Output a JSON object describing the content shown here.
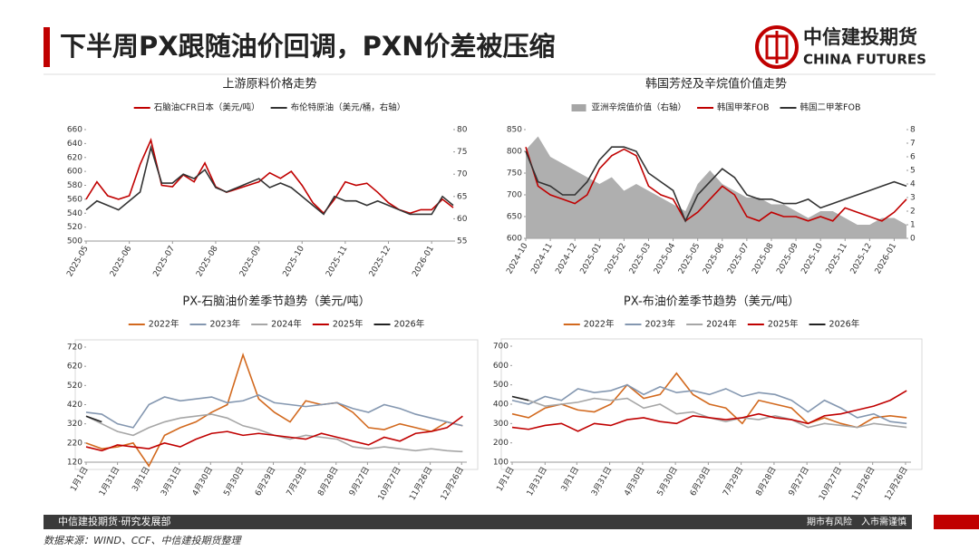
{
  "header": {
    "title": "下半周PX跟随油价回调，PXN价差被压缩",
    "logo_cn": "中信建投期货",
    "logo_en": "CHINA FUTURES"
  },
  "footer": {
    "department": "中信建投期货·研究发展部",
    "risk": "期市有风险　入市需谨慎",
    "source": "数据来源：WIND、CCF、中信建投期货整理"
  },
  "chart_data": [
    {
      "type": "line",
      "title": "上游原料价格走势",
      "categories": [
        "2025-05",
        null,
        null,
        null,
        "2025-06",
        null,
        null,
        null,
        "2025-07",
        null,
        null,
        null,
        "2025-08",
        null,
        null,
        null,
        "2025-09",
        null,
        null,
        null,
        "2025-10",
        null,
        null,
        null,
        "2025-11",
        null,
        null,
        null,
        "2025-12",
        null,
        null,
        null,
        "2026-01",
        null,
        null
      ],
      "series": [
        {
          "name": "石脑油CFR日本（美元/吨）",
          "color": "#c00000",
          "values": [
            560,
            585,
            565,
            560,
            565,
            610,
            645,
            580,
            578,
            595,
            585,
            612,
            578,
            570,
            575,
            580,
            585,
            598,
            590,
            600,
            580,
            555,
            540,
            560,
            585,
            580,
            583,
            570,
            555,
            545,
            540,
            545,
            545,
            560,
            548
          ]
        },
        {
          "name": "布伦特原油（美元/桶，右轴）",
          "color": "#333333",
          "axis": "y2",
          "values": [
            62,
            64,
            63,
            62,
            64,
            66,
            76,
            68,
            68,
            70,
            69,
            71,
            67,
            66,
            67,
            68,
            69,
            67,
            68,
            67,
            65,
            63,
            61,
            65,
            64,
            64,
            63,
            64,
            63,
            62,
            61,
            61,
            61,
            65,
            63
          ]
        }
      ],
      "ylim": [
        500,
        660
      ],
      "yticks": [
        500,
        520,
        540,
        560,
        580,
        600,
        620,
        640,
        660
      ],
      "y2lim": [
        55,
        80
      ],
      "y2ticks": [
        55,
        60,
        65,
        70,
        75,
        80
      ]
    },
    {
      "type": "line",
      "title": "韩国芳烃及辛烷值价值走势",
      "categories": [
        "2024-10",
        null,
        "2024-11",
        null,
        "2024-12",
        null,
        "2025-01",
        null,
        "2025-02",
        null,
        "2025-03",
        null,
        "2025-04",
        null,
        "2025-05",
        null,
        "2025-06",
        null,
        "2025-07",
        null,
        "2025-08",
        null,
        "2025-09",
        null,
        "2025-10",
        null,
        "2025-11",
        null,
        "2025-12",
        null,
        "2026-01",
        null
      ],
      "series": [
        {
          "name": "亚洲辛烷值价值（右轴）",
          "color": "#a6a6a6",
          "type": "area",
          "axis": "y2",
          "values": [
            6.5,
            7.5,
            6,
            5.5,
            5,
            4.5,
            4,
            4.5,
            3.5,
            4,
            3.5,
            3,
            2.5,
            2,
            4,
            5,
            4,
            3.5,
            3,
            3,
            2.5,
            2.5,
            2,
            1.5,
            2,
            2,
            1.5,
            1,
            1,
            1.5,
            1.5,
            1
          ]
        },
        {
          "name": "韩国甲苯FOB",
          "color": "#c00000",
          "values": [
            810,
            720,
            700,
            690,
            680,
            700,
            760,
            790,
            805,
            790,
            720,
            700,
            690,
            640,
            660,
            690,
            720,
            700,
            650,
            640,
            660,
            650,
            650,
            640,
            650,
            640,
            670,
            660,
            650,
            640,
            660,
            690
          ]
        },
        {
          "name": "韩国二甲苯FOB",
          "color": "#333333",
          "values": [
            800,
            730,
            720,
            700,
            700,
            730,
            780,
            810,
            810,
            800,
            750,
            730,
            710,
            640,
            700,
            730,
            760,
            740,
            700,
            690,
            690,
            680,
            680,
            690,
            670,
            680,
            690,
            700,
            710,
            720,
            730,
            720
          ]
        }
      ],
      "ylim": [
        600,
        850
      ],
      "yticks": [
        600,
        650,
        700,
        750,
        800,
        850
      ],
      "y2lim": [
        0,
        8
      ],
      "y2ticks": [
        0,
        1,
        2,
        3,
        4,
        5,
        6,
        7,
        8
      ]
    },
    {
      "type": "line",
      "title": "PX-石脑油价差季节趋势（美元/吨）",
      "x": [
        1,
        16,
        31,
        46,
        61,
        76,
        91,
        106,
        121,
        136,
        151,
        166,
        181,
        196,
        211,
        226,
        241,
        256,
        271,
        286,
        301,
        316,
        331,
        346,
        361
      ],
      "series": [
        {
          "name": "2022年",
          "color": "#d2691e",
          "values": [
            220,
            190,
            200,
            220,
            100,
            260,
            300,
            330,
            380,
            420,
            680,
            450,
            380,
            330,
            440,
            420,
            430,
            380,
            300,
            290,
            320,
            300,
            280,
            330,
            310
          ]
        },
        {
          "name": "2023年",
          "color": "#8497b0",
          "values": [
            380,
            370,
            320,
            300,
            420,
            460,
            440,
            450,
            460,
            430,
            440,
            470,
            430,
            420,
            410,
            420,
            430,
            400,
            380,
            420,
            400,
            370,
            350,
            330,
            310
          ]
        },
        {
          "name": "2024年",
          "color": "#a6a6a6",
          "values": [
            360,
            320,
            280,
            260,
            300,
            330,
            350,
            360,
            370,
            350,
            310,
            290,
            260,
            240,
            260,
            250,
            240,
            200,
            190,
            200,
            190,
            180,
            190,
            180,
            175
          ]
        },
        {
          "name": "2025年",
          "color": "#c00000",
          "values": [
            200,
            180,
            210,
            200,
            190,
            220,
            200,
            240,
            270,
            280,
            260,
            270,
            260,
            250,
            240,
            270,
            250,
            230,
            210,
            250,
            230,
            270,
            280,
            300,
            360
          ]
        },
        {
          "name": "2026年",
          "color": "#222222",
          "values": [
            360,
            330,
            null,
            null,
            null,
            null,
            null,
            null,
            null,
            null,
            null,
            null,
            null,
            null,
            null,
            null,
            null,
            null,
            null,
            null,
            null,
            null,
            null,
            null,
            null
          ]
        }
      ],
      "xlim": [
        1,
        365
      ],
      "xticks": [
        {
          "value": 1,
          "label": "1月1日"
        },
        {
          "value": 31,
          "label": "1月31日"
        },
        {
          "value": 60,
          "label": "3月1日"
        },
        {
          "value": 90,
          "label": "3月31日"
        },
        {
          "value": 120,
          "label": "4月30日"
        },
        {
          "value": 150,
          "label": "5月30日"
        },
        {
          "value": 180,
          "label": "6月29日"
        },
        {
          "value": 210,
          "label": "7月29日"
        },
        {
          "value": 240,
          "label": "8月28日"
        },
        {
          "value": 270,
          "label": "9月27日"
        },
        {
          "value": 300,
          "label": "10月27日"
        },
        {
          "value": 330,
          "label": "11月26日"
        },
        {
          "value": 360,
          "label": "12月26日"
        }
      ],
      "ylim": [
        120,
        720
      ],
      "yticks": [
        120,
        220,
        320,
        420,
        520,
        620,
        720
      ]
    },
    {
      "type": "line",
      "title": "PX-布油价差季节趋势（美元/吨）",
      "x": [
        1,
        16,
        31,
        46,
        61,
        76,
        91,
        106,
        121,
        136,
        151,
        166,
        181,
        196,
        211,
        226,
        241,
        256,
        271,
        286,
        301,
        316,
        331,
        346,
        361
      ],
      "series": [
        {
          "name": "2022年",
          "color": "#d2691e",
          "values": [
            350,
            330,
            380,
            400,
            370,
            360,
            400,
            500,
            430,
            450,
            560,
            450,
            400,
            380,
            300,
            420,
            400,
            380,
            300,
            330,
            300,
            280,
            330,
            340,
            330
          ]
        },
        {
          "name": "2023年",
          "color": "#8497b0",
          "values": [
            420,
            400,
            440,
            420,
            480,
            460,
            470,
            500,
            450,
            490,
            460,
            470,
            450,
            480,
            440,
            460,
            450,
            420,
            360,
            420,
            380,
            330,
            350,
            310,
            300
          ]
        },
        {
          "name": "2024年",
          "color": "#a6a6a6",
          "values": [
            440,
            420,
            390,
            400,
            410,
            430,
            420,
            430,
            380,
            400,
            350,
            360,
            330,
            310,
            330,
            320,
            340,
            320,
            280,
            300,
            290,
            280,
            300,
            290,
            280
          ]
        },
        {
          "name": "2025年",
          "color": "#c00000",
          "values": [
            280,
            270,
            290,
            300,
            260,
            300,
            290,
            320,
            330,
            310,
            300,
            340,
            330,
            320,
            330,
            350,
            330,
            320,
            300,
            340,
            350,
            370,
            390,
            420,
            470
          ]
        },
        {
          "name": "2026年",
          "color": "#222222",
          "values": [
            440,
            420,
            null,
            null,
            null,
            null,
            null,
            null,
            null,
            null,
            null,
            null,
            null,
            null,
            null,
            null,
            null,
            null,
            null,
            null,
            null,
            null,
            null,
            null,
            null
          ]
        }
      ],
      "xlim": [
        1,
        365
      ],
      "xticks": [
        {
          "value": 1,
          "label": "1月1日"
        },
        {
          "value": 31,
          "label": "1月31日"
        },
        {
          "value": 60,
          "label": "3月1日"
        },
        {
          "value": 90,
          "label": "3月31日"
        },
        {
          "value": 120,
          "label": "4月30日"
        },
        {
          "value": 150,
          "label": "5月30日"
        },
        {
          "value": 180,
          "label": "6月29日"
        },
        {
          "value": 210,
          "label": "7月29日"
        },
        {
          "value": 240,
          "label": "8月28日"
        },
        {
          "value": 270,
          "label": "9月27日"
        },
        {
          "value": 300,
          "label": "10月27日"
        },
        {
          "value": 330,
          "label": "11月26日"
        },
        {
          "value": 360,
          "label": "12月26日"
        }
      ],
      "ylim": [
        100,
        700
      ],
      "yticks": [
        100,
        200,
        300,
        400,
        500,
        600,
        700
      ]
    }
  ]
}
